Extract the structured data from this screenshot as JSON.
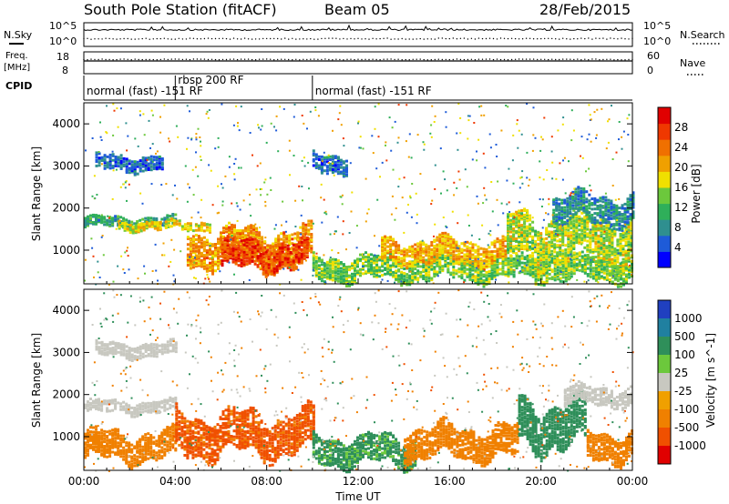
{
  "header": {
    "station": "South Pole Station (fitACF)",
    "beam": "Beam 05",
    "date": "28/Feb/2015"
  },
  "noise_panel": {
    "left_label": "N.Sky",
    "right_label": "N.Search",
    "ytick_top": "10^5",
    "ytick_bottom": "10^0"
  },
  "freq_panel": {
    "left_label_1": "Freq.",
    "left_label_2": "[MHz]",
    "right_label": "Nave",
    "ytick_left_top": "18",
    "ytick_left_bottom": "8",
    "ytick_right_top": "60",
    "ytick_right_bottom": "0"
  },
  "cpid_panel": {
    "label": "CPID",
    "segments": [
      {
        "start_hour": 0,
        "end_hour": 4,
        "label": "normal (fast) -151 RF"
      },
      {
        "start_hour": 4,
        "end_hour": 10,
        "label": "rbsp 200 RF"
      },
      {
        "start_hour": 10,
        "end_hour": 24,
        "label": "normal (fast) -151 RF"
      }
    ]
  },
  "chart_data": [
    {
      "type": "heatmap",
      "title": "Power",
      "ylabel": "Slant Range [km]",
      "xlabel": "",
      "xlim_hours": [
        0,
        24
      ],
      "ylim_km": [
        200,
        4500
      ],
      "yticks": [
        1000,
        2000,
        3000,
        4000
      ],
      "colorbar": {
        "label": "Power [dB]",
        "ticks": [
          "4",
          "8",
          "12",
          "16",
          "20",
          "24",
          "28"
        ],
        "range": [
          0,
          32
        ],
        "colors": [
          "#0000ff",
          "#1e5bd8",
          "#2f8f8f",
          "#2faf5a",
          "#6cc83c",
          "#f0e000",
          "#f0a000",
          "#f07000",
          "#ef3800",
          "#e00000"
        ]
      },
      "bands": [
        {
          "start": 0.0,
          "end": 4.0,
          "center": 1700,
          "width": 120,
          "value": 10
        },
        {
          "start": 1.5,
          "end": 5.5,
          "center": 1620,
          "width": 100,
          "value": 18
        },
        {
          "start": 4.5,
          "end": 10.0,
          "center": 1100,
          "width": 380,
          "value": 22
        },
        {
          "start": 6.0,
          "end": 9.8,
          "center": 900,
          "width": 300,
          "value": 27
        },
        {
          "start": 0.5,
          "end": 3.5,
          "center": 3100,
          "width": 160,
          "value": 6
        },
        {
          "start": 10.0,
          "end": 24.0,
          "center": 600,
          "width": 250,
          "value": 14
        },
        {
          "start": 13.0,
          "end": 18.5,
          "center": 1000,
          "width": 250,
          "value": 20
        },
        {
          "start": 18.5,
          "end": 24.0,
          "center": 1300,
          "width": 500,
          "value": 16
        },
        {
          "start": 20.5,
          "end": 24.0,
          "center": 2000,
          "width": 300,
          "value": 8
        },
        {
          "start": 10.0,
          "end": 11.5,
          "center": 3100,
          "width": 200,
          "value": 6
        }
      ]
    },
    {
      "type": "heatmap",
      "title": "Velocity",
      "ylabel": "Slant Range [km]",
      "xlabel": "Time UT",
      "xlim_hours": [
        0,
        24
      ],
      "ylim_km": [
        200,
        4500
      ],
      "yticks": [
        1000,
        2000,
        3000,
        4000
      ],
      "xticks": [
        "00:00",
        "04:00",
        "08:00",
        "12:00",
        "16:00",
        "20:00",
        "00:00"
      ],
      "colorbar": {
        "label": "Velocity [m s^-1]",
        "ticks": [
          "1000",
          "500",
          "100",
          "25",
          "-25",
          "-100",
          "-500",
          "-1000"
        ],
        "colors": [
          "#2040c0",
          "#2080a0",
          "#2f8f5a",
          "#6cc83c",
          "#c8c8c0",
          "#f0a000",
          "#f08000",
          "#f05000",
          "#e00000"
        ]
      },
      "bands": [
        {
          "start": 0.0,
          "end": 4.0,
          "center": 1750,
          "width": 140,
          "value": 0
        },
        {
          "start": 0.0,
          "end": 4.0,
          "center": 800,
          "width": 300,
          "value": -300
        },
        {
          "start": 4.0,
          "end": 10.0,
          "center": 1100,
          "width": 450,
          "value": -600
        },
        {
          "start": 0.5,
          "end": 4.0,
          "center": 3100,
          "width": 150,
          "value": 0
        },
        {
          "start": 10.0,
          "end": 14.5,
          "center": 700,
          "width": 300,
          "value": 200
        },
        {
          "start": 14.0,
          "end": 19.0,
          "center": 900,
          "width": 350,
          "value": -300
        },
        {
          "start": 19.0,
          "end": 22.0,
          "center": 1300,
          "width": 500,
          "value": 300
        },
        {
          "start": 22.0,
          "end": 24.0,
          "center": 800,
          "width": 300,
          "value": -300
        },
        {
          "start": 21.0,
          "end": 24.0,
          "center": 2000,
          "width": 200,
          "value": 0
        }
      ]
    }
  ]
}
